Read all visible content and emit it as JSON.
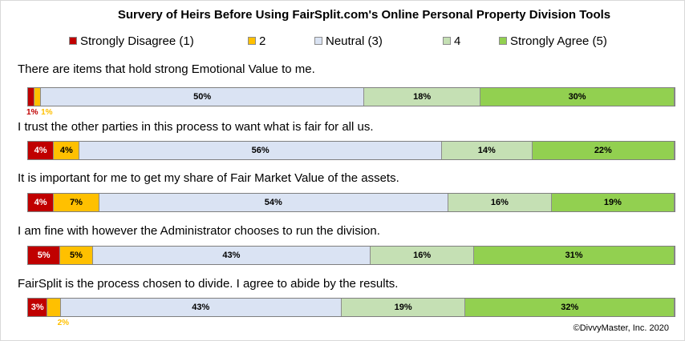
{
  "chart_data": {
    "type": "bar",
    "orientation": "horizontal",
    "stacked": true,
    "percent": true,
    "title": "Survery of Heirs Before Using FairSplit.com's Online Personal Property Division Tools",
    "categories": [
      "There are items that hold strong Emotional Value to me.",
      "I trust the other parties in this process to want what is fair for all us.",
      "It is important for me to get my share of Fair Market Value of the assets.",
      "I am fine with however the Administrator chooses to run the division.",
      "FairSplit is the process chosen to divide. I agree to abide by the results."
    ],
    "series": [
      {
        "name": "Strongly Disagree (1)",
        "color": "#c00000",
        "values": [
          1,
          4,
          4,
          5,
          3
        ]
      },
      {
        "name": "2",
        "color": "#ffc000",
        "values": [
          1,
          4,
          7,
          5,
          2
        ]
      },
      {
        "name": "Neutral (3)",
        "color": "#dae3f3",
        "values": [
          50,
          56,
          54,
          43,
          43
        ]
      },
      {
        "name": "4",
        "color": "#c5e0b4",
        "values": [
          18,
          14,
          16,
          16,
          19
        ]
      },
      {
        "name": "Strongly Agree (5)",
        "color": "#92d050",
        "values": [
          30,
          22,
          19,
          31,
          32
        ]
      }
    ],
    "legend": "top",
    "grid": false
  },
  "copyright": "©DivvyMaster, Inc. 2020"
}
